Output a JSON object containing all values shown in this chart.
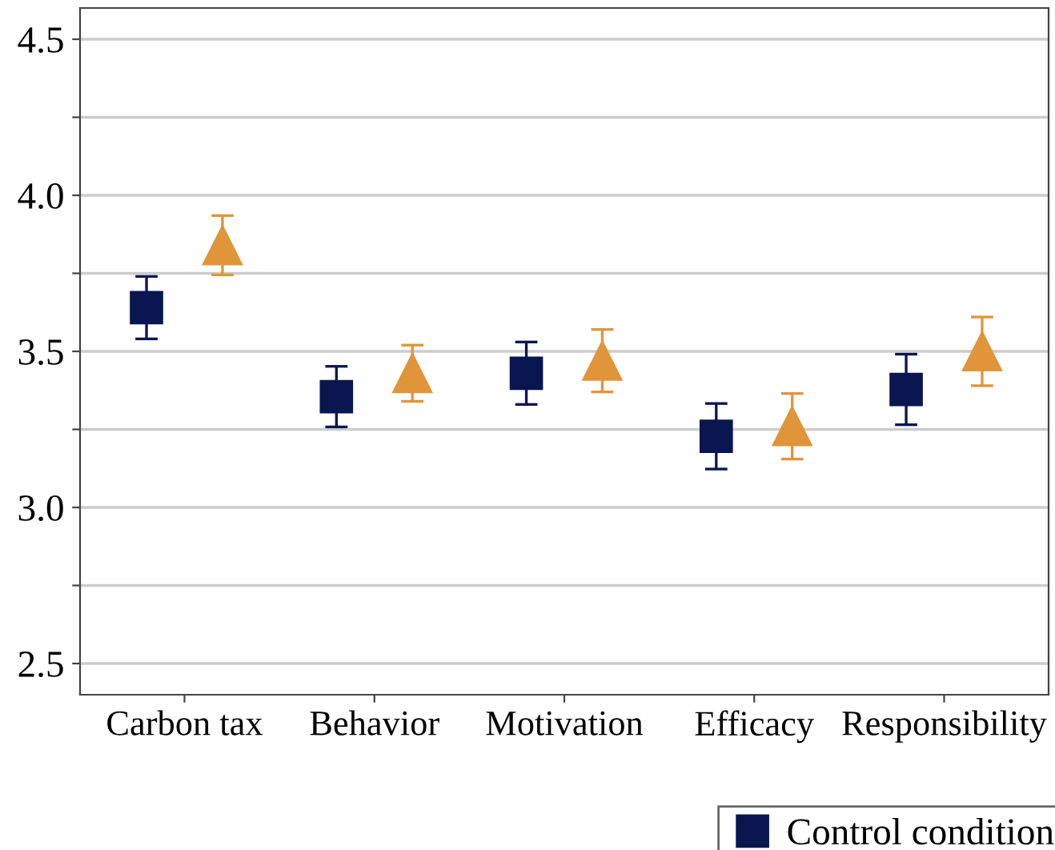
{
  "chart_data": {
    "type": "scatter",
    "categories": [
      "Carbon tax",
      "Behavior",
      "Motivation",
      "Efficacy",
      "Responsibility"
    ],
    "series": [
      {
        "name": "Control condition",
        "color": "#0a1650",
        "marker": "square",
        "values": [
          3.64,
          3.355,
          3.43,
          3.228,
          3.378
        ],
        "errors": [
          0.1,
          0.097,
          0.1,
          0.105,
          0.113
        ]
      },
      {
        "color": "#e0953a",
        "marker": "triangle",
        "values": [
          3.84,
          3.43,
          3.47,
          3.26,
          3.5
        ],
        "errors": [
          0.095,
          0.09,
          0.1,
          0.105,
          0.11
        ]
      }
    ],
    "ylim": [
      2.4,
      4.6
    ],
    "yticks": [
      2.5,
      {
        "value": 2.75,
        "label": null
      },
      {
        "value": 3,
        "label": "3.0"
      },
      {
        "value": 3.25,
        "label": null
      },
      3.5,
      {
        "value": 3.75,
        "label": null
      },
      {
        "value": 4,
        "label": "4.0"
      },
      {
        "value": 4.25,
        "label": null
      },
      4.5
    ],
    "grid": "y",
    "legend": "bottom right"
  }
}
